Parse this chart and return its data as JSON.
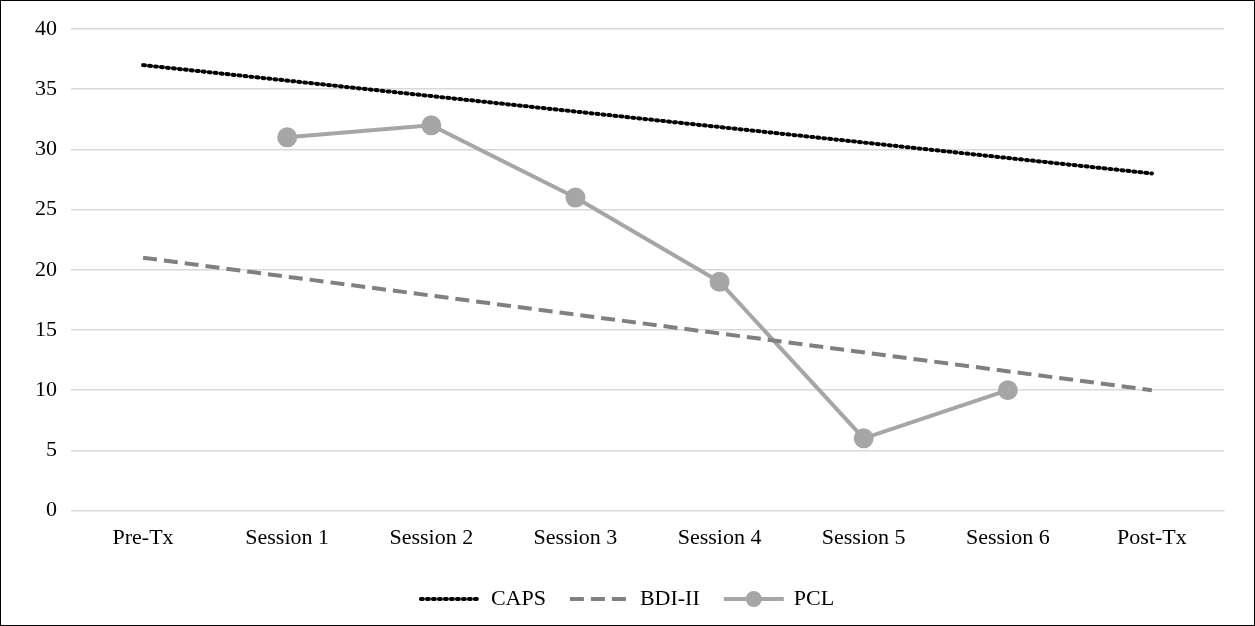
{
  "chart_data": {
    "type": "line",
    "categories": [
      "Pre-Tx",
      "Session 1",
      "Session 2",
      "Session 3",
      "Session 4",
      "Session 5",
      "Session 6",
      "Post-Tx"
    ],
    "series": [
      {
        "name": "CAPS",
        "color": "#000000",
        "line_style": "dotted",
        "marker": "none",
        "values": [
          37,
          null,
          null,
          null,
          null,
          null,
          null,
          28
        ]
      },
      {
        "name": "BDI-II",
        "color": "#808080",
        "line_style": "dashed",
        "marker": "none",
        "values": [
          21,
          null,
          null,
          null,
          null,
          null,
          null,
          10
        ]
      },
      {
        "name": "PCL",
        "color": "#a6a6a6",
        "line_style": "solid",
        "marker": "circle",
        "values": [
          null,
          31,
          32,
          26,
          19,
          6,
          10,
          null
        ]
      }
    ],
    "ylim": [
      0,
      40
    ],
    "yticks": [
      0,
      5,
      10,
      15,
      20,
      25,
      30,
      35,
      40
    ],
    "grid": "y",
    "legend": "bottom"
  }
}
